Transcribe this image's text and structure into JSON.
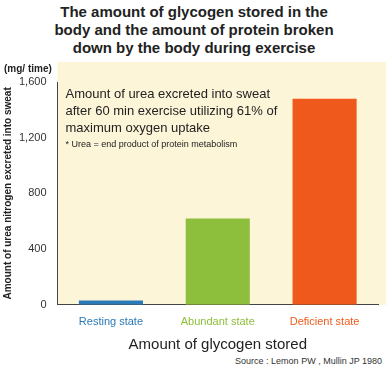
{
  "chart_data": {
    "type": "bar",
    "title": [
      "The amount of glycogen stored in the",
      "body and the amount of protein broken",
      "down by the body during exercise"
    ],
    "annotation": [
      "Amount of urea excreted into sweat",
      "after 60 min exercise utilizing 61% of",
      "maximum oxygen uptake"
    ],
    "footnote": "* Urea = end product of protein metabolism",
    "unit_label": "(mg/ time)",
    "y_label": "Amount of urea nitrogen excreted into sweat",
    "x_label": "Amount of glycogen stored",
    "source": "Source : Lemon PW , Mullin JP 1980",
    "categories": [
      "Resting state",
      "Abundant state",
      "Deficient state"
    ],
    "values": [
      30,
      620,
      1480
    ],
    "colors": [
      "#2a7ab8",
      "#8dbf3c",
      "#ef5a1c"
    ],
    "ylim": [
      0,
      1600
    ],
    "yticks": [
      0,
      400,
      800,
      1200,
      1600
    ],
    "grid": false
  }
}
